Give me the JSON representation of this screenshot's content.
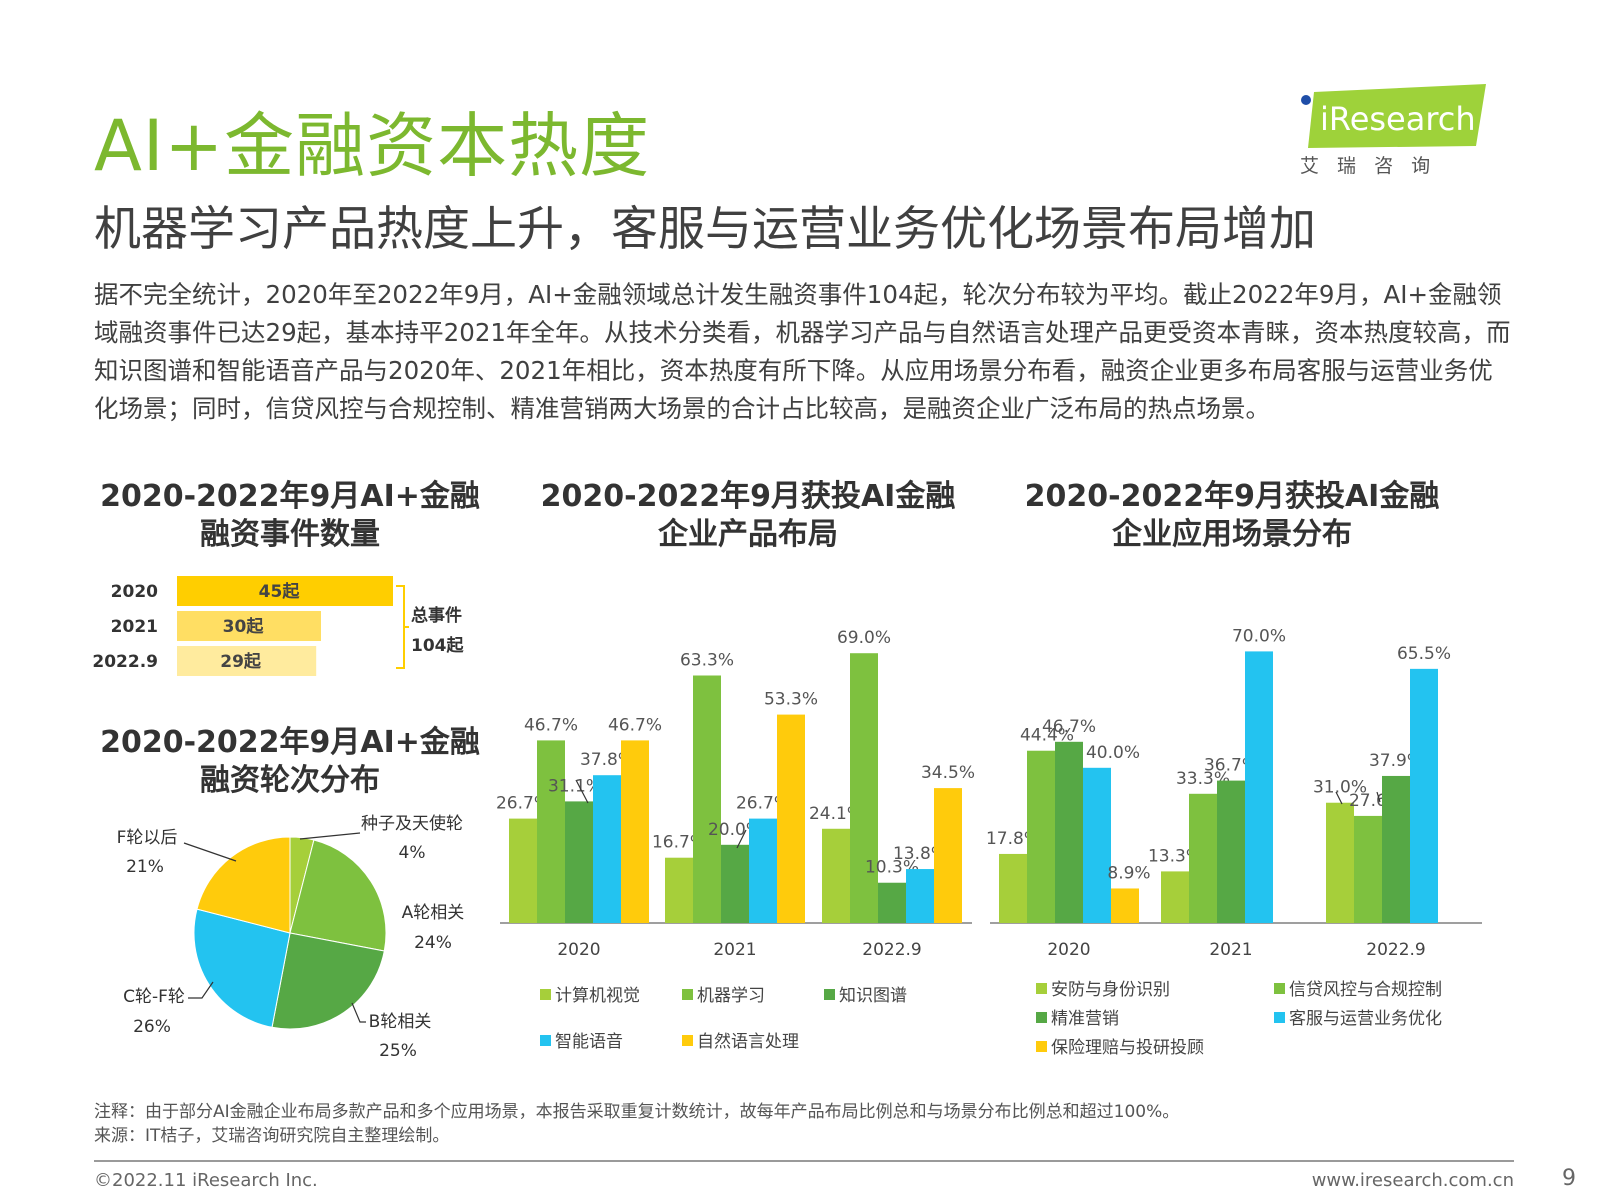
{
  "header": {
    "title": "AI+金融资本热度",
    "subtitle": "机器学习产品热度上升，客服与运营业务优化场景布局增加",
    "logo_text": "iResearch",
    "logo_cn": "艾 瑞 咨 询"
  },
  "intro": "据不完全统计，2020年至2022年9月，AI+金融领域总计发生融资事件104起，轮次分布较为平均。截止2022年9月，AI+金融领域融资事件已达29起，基本持平2021年全年。从技术分类看，机器学习产品与自然语言处理产品更受资本青睐，资本热度较高，而知识图谱和智能语音产品与2020年、2021年相比，资本热度有所下降。从应用场景分布看，融资企业更多布局客服与运营业务优化场景；同时，信贷风控与合规控制、精准营销两大场景的合计占比较高，是融资企业广泛布局的热点场景。",
  "titles": {
    "events": [
      "2020-2022年9月AI+金融",
      "融资事件数量"
    ],
    "rounds": [
      "2020-2022年9月AI+金融",
      "融资轮次分布"
    ],
    "products": [
      "2020-2022年9月获投AI金融",
      "企业产品布局"
    ],
    "scenes": [
      "2020-2022年9月获投AI金融",
      "企业应用场景分布"
    ]
  },
  "colors": {
    "title_green": "#7cb82f",
    "yellow1": "#ffce00",
    "yellow2": "#ffde63",
    "yellow3": "#ffeb9e",
    "lightgreen": "#a6cf3a",
    "green": "#7ec13f",
    "darkgreen": "#56a845",
    "cyan": "#23c3f0",
    "gold": "#ffcb0c"
  },
  "chart_data": [
    {
      "type": "bar",
      "orientation": "horizontal",
      "categories": [
        "2020",
        "2021",
        "2022.9"
      ],
      "values": [
        45,
        30,
        29
      ],
      "data_labels": [
        "45起",
        "30起",
        "29起"
      ],
      "annotation": [
        "总事件",
        "104起"
      ]
    },
    {
      "type": "pie",
      "labels": [
        "种子及天使轮",
        "A轮相关",
        "B轮相关",
        "C轮-F轮",
        "F轮以后"
      ],
      "values": [
        4,
        24,
        25,
        26,
        21
      ],
      "data_labels": [
        "4%",
        "24%",
        "25%",
        "26%",
        "21%"
      ]
    },
    {
      "type": "bar",
      "categories": [
        "2020",
        "2021",
        "2022.9"
      ],
      "series": [
        {
          "name": "计算机视觉",
          "values": [
            26.7,
            16.7,
            24.1
          ],
          "labels": [
            "26.7%",
            "16.7%",
            "24.1%"
          ]
        },
        {
          "name": "机器学习",
          "values": [
            46.7,
            63.3,
            69.0
          ],
          "labels": [
            "46.7%",
            "63.3%",
            "69.0%"
          ]
        },
        {
          "name": "知识图谱",
          "values": [
            31.1,
            20.0,
            10.3
          ],
          "labels": [
            "31.1%",
            "20.0%",
            "10.3%"
          ]
        },
        {
          "name": "智能语音",
          "values": [
            37.8,
            26.7,
            13.8
          ],
          "labels": [
            "37.8%",
            "26.7%",
            "13.8%"
          ]
        },
        {
          "name": "自然语言处理",
          "values": [
            46.7,
            53.3,
            34.5
          ],
          "labels": [
            "46.7%",
            "53.3%",
            "34.5%"
          ]
        }
      ],
      "legend_position": "bottom"
    },
    {
      "type": "bar",
      "categories": [
        "2020",
        "2021",
        "2022.9"
      ],
      "series": [
        {
          "name": "安防与身份识别",
          "values": [
            17.8,
            13.3,
            31.0
          ],
          "labels": [
            "17.8%",
            "13.3%",
            "31.0%"
          ]
        },
        {
          "name": "信贷风控与合规控制",
          "values": [
            44.4,
            33.3,
            27.6
          ],
          "labels": [
            "44.4%",
            "33.3%",
            "27.6%"
          ]
        },
        {
          "name": "精准营销",
          "values": [
            46.7,
            36.7,
            37.9
          ],
          "labels": [
            "46.7%",
            "36.7%",
            "37.9%"
          ]
        },
        {
          "name": "客服与运营业务优化",
          "values": [
            40.0,
            70.0,
            65.5
          ],
          "labels": [
            "40.0%",
            "70.0%",
            "65.5%"
          ]
        },
        {
          "name": "保险理赔与投研投顾",
          "values": [
            8.9,
            0,
            0
          ],
          "labels": [
            "8.9%",
            "",
            ""
          ]
        }
      ],
      "legend_position": "bottom"
    }
  ],
  "footer": {
    "note": "注释：由于部分AI金融企业布局多款产品和多个应用场景，本报告采取重复计数统计，故每年产品布局比例总和与场景分布比例总和超过100%。",
    "source": "来源：IT桔子，艾瑞咨询研究院自主整理绘制。",
    "copyright": "©2022.11 iResearch Inc.",
    "site": "www.iresearch.com.cn",
    "page": "9"
  }
}
